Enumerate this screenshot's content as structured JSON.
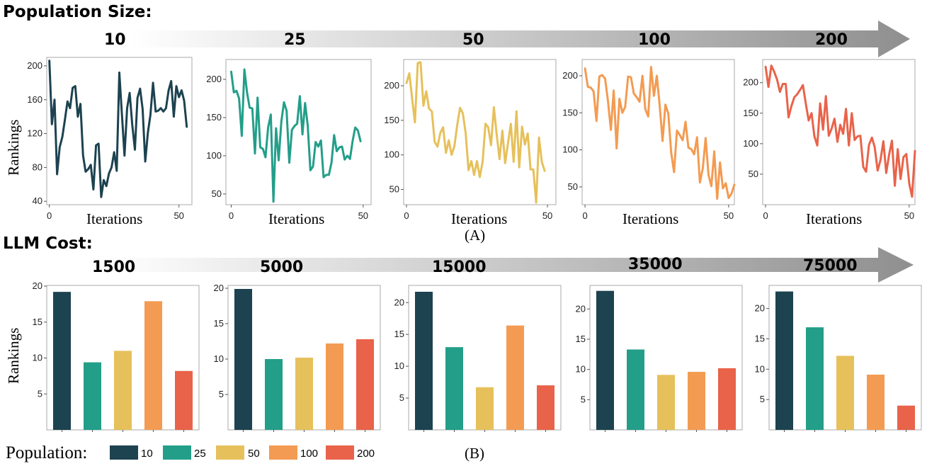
{
  "header_a": "Population Size:",
  "header_b": "LLM Cost:",
  "arrow_a_labels": [
    "10",
    "25",
    "50",
    "100",
    "200"
  ],
  "arrow_b_labels": [
    "1500",
    "5000",
    "15000",
    "35000",
    "75000"
  ],
  "caption_a": "(A)",
  "caption_b": "(B)",
  "legend": {
    "title": "Population:",
    "items": [
      {
        "label": "10",
        "color": "#1d4250"
      },
      {
        "label": "25",
        "color": "#239e89"
      },
      {
        "label": "50",
        "color": "#e6c05b"
      },
      {
        "label": "100",
        "color": "#f39b52"
      },
      {
        "label": "200",
        "color": "#e8634a"
      }
    ]
  },
  "chart_data": [
    {
      "type": "line",
      "panel": "A",
      "population": "10",
      "color": "#1d4250",
      "xlabel": "Iterations",
      "ylabel": "Rankings",
      "xlim": [
        -1,
        55
      ],
      "ylim": [
        36,
        210
      ],
      "xticks": [
        0,
        50
      ],
      "yticks": [
        40,
        80,
        120,
        160,
        200
      ],
      "values": [
        206,
        131,
        160,
        72,
        104,
        116,
        136,
        158,
        150,
        174,
        176,
        140,
        155,
        94,
        75,
        78,
        83,
        54,
        106,
        108,
        45,
        65,
        58,
        73,
        80,
        98,
        76,
        192,
        142,
        94,
        150,
        168,
        130,
        101,
        162,
        173,
        149,
        87,
        121,
        142,
        180,
        146,
        147,
        150,
        146,
        150,
        171,
        182,
        140,
        176,
        163,
        171,
        159,
        128
      ]
    },
    {
      "type": "line",
      "panel": "A",
      "population": "25",
      "color": "#239e89",
      "xlabel": "Iterations",
      "ylabel": "Rankings",
      "xlim": [
        -2,
        53
      ],
      "ylim": [
        36,
        226
      ],
      "xticks": [
        0,
        50
      ],
      "yticks": [
        50,
        100,
        150,
        200
      ],
      "values": [
        210,
        183,
        185,
        175,
        126,
        213,
        183,
        163,
        162,
        103,
        176,
        111,
        109,
        98,
        137,
        154,
        40,
        136,
        94,
        145,
        170,
        159,
        91,
        134,
        139,
        142,
        178,
        128,
        169,
        140,
        81,
        86,
        118,
        112,
        120,
        72,
        75,
        75,
        91,
        127,
        106,
        111,
        112,
        95,
        100,
        96,
        119,
        137,
        133,
        119
      ]
    },
    {
      "type": "line",
      "panel": "A",
      "population": "50",
      "color": "#e6c05b",
      "xlabel": "Iterations",
      "ylabel": "Rankings",
      "xlim": [
        -1,
        53
      ],
      "ylim": [
        28,
        238
      ],
      "xticks": [
        0,
        50
      ],
      "yticks": [
        50,
        100,
        150,
        200
      ],
      "values": [
        204,
        218,
        182,
        147,
        233,
        234,
        171,
        192,
        167,
        163,
        119,
        112,
        132,
        140,
        103,
        121,
        100,
        113,
        143,
        168,
        160,
        131,
        78,
        91,
        71,
        91,
        68,
        90,
        145,
        140,
        114,
        169,
        129,
        94,
        135,
        88,
        117,
        145,
        90,
        163,
        82,
        141,
        115,
        131,
        79,
        79,
        31,
        125,
        90,
        77
      ]
    },
    {
      "type": "line",
      "panel": "A",
      "population": "100",
      "color": "#f39b52",
      "xlabel": "Iterations",
      "ylabel": "Rankings",
      "xlim": [
        -1,
        52
      ],
      "ylim": [
        26,
        222
      ],
      "xticks": [
        0,
        50
      ],
      "yticks": [
        50,
        100,
        150,
        200
      ],
      "values": [
        210,
        185,
        184,
        179,
        139,
        199,
        201,
        196,
        166,
        127,
        180,
        102,
        169,
        150,
        158,
        199,
        198,
        176,
        171,
        165,
        200,
        155,
        145,
        212,
        173,
        200,
        160,
        112,
        161,
        149,
        96,
        70,
        126,
        120,
        113,
        138,
        103,
        101,
        94,
        117,
        56,
        75,
        116,
        66,
        51,
        98,
        34,
        83,
        48,
        55,
        35,
        41,
        53
      ]
    },
    {
      "type": "line",
      "panel": "A",
      "population": "200",
      "color": "#e8634a",
      "xlabel": "Iterations",
      "ylabel": "Rankings",
      "xlim": [
        -1,
        52
      ],
      "ylim": [
        0,
        238
      ],
      "xticks": [
        0,
        50
      ],
      "yticks": [
        50,
        100,
        150,
        200
      ],
      "values": [
        226,
        193,
        228,
        218,
        205,
        185,
        198,
        198,
        143,
        162,
        176,
        181,
        188,
        196,
        166,
        138,
        150,
        112,
        97,
        166,
        123,
        178,
        113,
        125,
        141,
        103,
        131,
        116,
        157,
        97,
        150,
        106,
        112,
        113,
        62,
        54,
        98,
        110,
        94,
        56,
        73,
        104,
        52,
        82,
        105,
        31,
        91,
        42,
        78,
        83,
        35,
        13,
        88
      ]
    },
    {
      "type": "bar",
      "panel": "B",
      "cost": "1500",
      "ylabel": "Rankings",
      "ylim": [
        0,
        20.1
      ],
      "yticks": [
        5,
        10,
        15,
        20
      ],
      "categories": [
        "10",
        "25",
        "50",
        "100",
        "200"
      ],
      "values": [
        19.2,
        9.4,
        11.0,
        17.9,
        8.2
      ]
    },
    {
      "type": "bar",
      "panel": "B",
      "cost": "5000",
      "ylabel": "Rankings",
      "ylim": [
        0,
        20.4
      ],
      "yticks": [
        5,
        10,
        15,
        20
      ],
      "categories": [
        "10",
        "25",
        "50",
        "100",
        "200"
      ],
      "values": [
        19.9,
        10.0,
        10.2,
        12.2,
        12.8
      ]
    },
    {
      "type": "bar",
      "panel": "B",
      "cost": "15000",
      "ylabel": "Rankings",
      "ylim": [
        0,
        22.7
      ],
      "yticks": [
        5,
        10,
        15,
        20
      ],
      "categories": [
        "10",
        "25",
        "50",
        "100",
        "200"
      ],
      "values": [
        21.7,
        13.0,
        6.7,
        16.4,
        7.0
      ]
    },
    {
      "type": "bar",
      "panel": "B",
      "cost": "35000",
      "ylabel": "Rankings",
      "ylim": [
        0,
        23.9
      ],
      "yticks": [
        5,
        10,
        15,
        20
      ],
      "categories": [
        "10",
        "25",
        "50",
        "100",
        "200"
      ],
      "values": [
        23.0,
        13.3,
        9.1,
        9.6,
        10.2
      ]
    },
    {
      "type": "bar",
      "panel": "B",
      "cost": "75000",
      "ylabel": "Rankings",
      "ylim": [
        0,
        23.8
      ],
      "yticks": [
        5,
        10,
        15,
        20
      ],
      "categories": [
        "10",
        "25",
        "50",
        "100",
        "200"
      ],
      "values": [
        22.8,
        16.9,
        12.2,
        9.1,
        4.0
      ]
    }
  ]
}
